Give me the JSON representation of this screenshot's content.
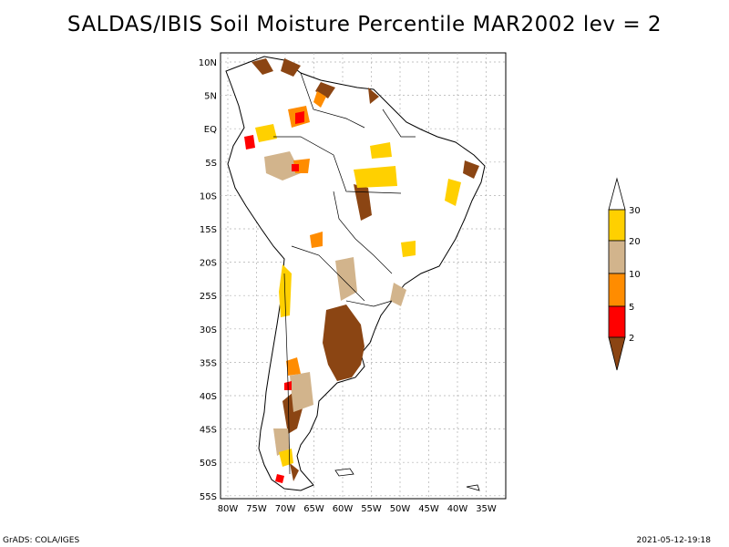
{
  "title": "SALDAS/IBIS Soil Moisture Percentile MAR2002 lev = 2",
  "map": {
    "lat_labels": [
      "10N",
      "5N",
      "EQ",
      "5S",
      "10S",
      "15S",
      "20S",
      "25S",
      "30S",
      "35S",
      "40S",
      "45S",
      "50S",
      "55S"
    ],
    "lon_labels": [
      "80W",
      "75W",
      "70W",
      "65W",
      "60W",
      "55W",
      "50W",
      "45W",
      "40W",
      "35W"
    ]
  },
  "legend": {
    "labels": [
      "30",
      "20",
      "10",
      "5",
      "2"
    ],
    "colors": {
      "above30": "#ffffff",
      "20to30": "#ffd000",
      "10to20": "#d2b48c",
      "5to10": "#ff8c00",
      "2to5": "#ff0000",
      "below2": "#8b4513"
    }
  },
  "footer": {
    "left": "GrADS: COLA/IGES",
    "right": "2021-05-12-19:18"
  }
}
